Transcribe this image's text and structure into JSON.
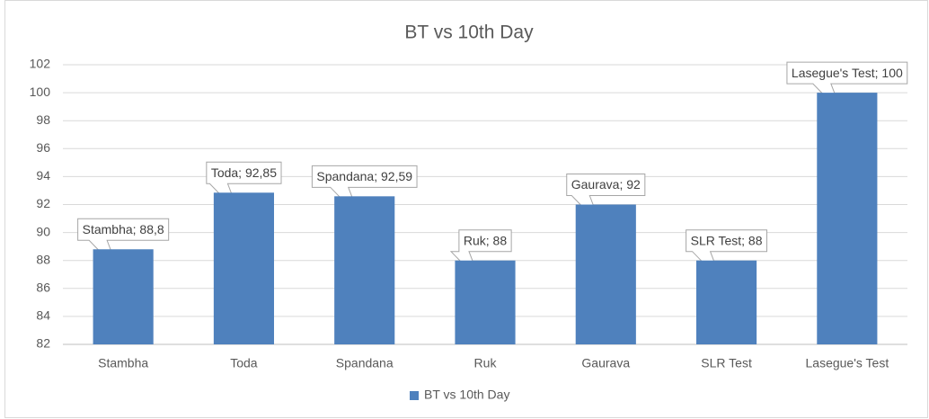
{
  "chart_data": {
    "type": "bar",
    "title": "BT vs 10th Day",
    "categories": [
      "Stambha",
      "Toda",
      "Spandana",
      "Ruk",
      "Gaurava",
      "SLR Test",
      "Lasegue's Test"
    ],
    "series": [
      {
        "name": "BT vs 10th Day",
        "color": "#4f81bd",
        "values": [
          88.8,
          92.85,
          92.59,
          88,
          92,
          88,
          100
        ],
        "value_labels": [
          "Stambha; 88,8",
          "Toda; 92,85",
          "Spandana; 92,59",
          "Ruk; 88",
          "Gaurava; 92",
          "SLR Test; 88",
          "Lasegue's Test; 100"
        ]
      }
    ],
    "ylim": [
      82,
      102
    ],
    "yticks": [
      82,
      84,
      86,
      88,
      90,
      92,
      94,
      96,
      98,
      100,
      102
    ],
    "grid": true,
    "legend": "bottom"
  }
}
